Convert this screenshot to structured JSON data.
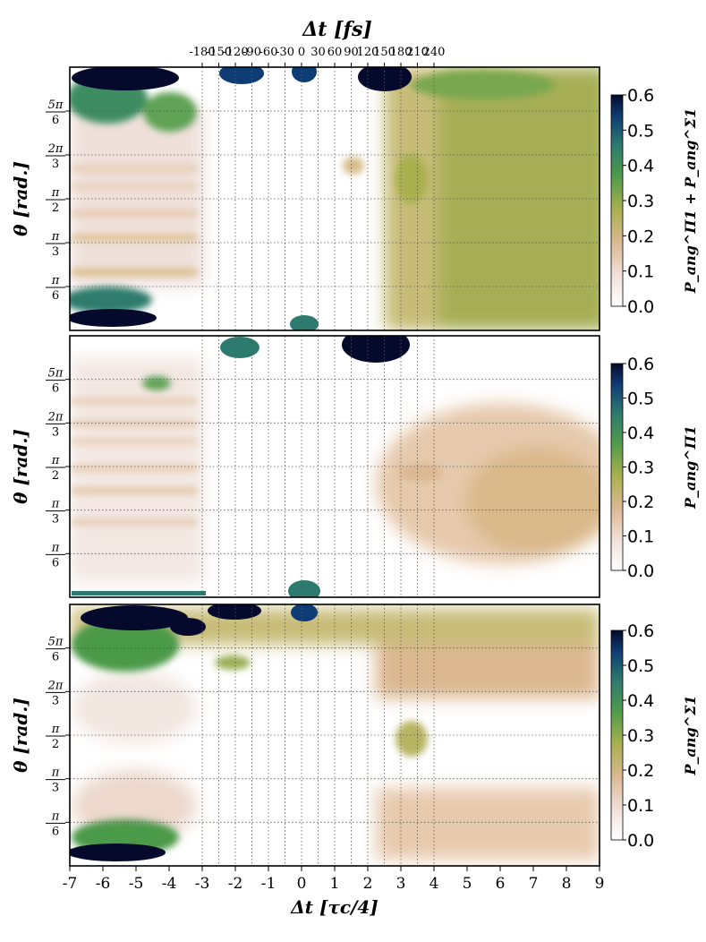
{
  "colors": {
    "colormap": [
      "#ffffff",
      "#f2e2dc",
      "#dcb892",
      "#a8b04e",
      "#4c9a4a",
      "#2d7a6e",
      "#0e3c74",
      "#050a2c"
    ],
    "grid": "#555555"
  },
  "chart_data": {
    "type": "heatmap",
    "top_axis": {
      "label": "Δt [fs]",
      "tick_labels": [
        "-180",
        "-150",
        "-120",
        "-90",
        "-60",
        "-30",
        "0",
        "30",
        "60",
        "90",
        "120",
        "150",
        "180",
        "210",
        "240"
      ]
    },
    "x_axis": {
      "label": "Δt [τc/4]",
      "tick_labels": [
        "-7",
        "-6",
        "-5",
        "-4",
        "-3",
        "-2",
        "-1",
        "0",
        "1",
        "2",
        "3",
        "4",
        "5",
        "6",
        "7",
        "8",
        "9"
      ],
      "range": [
        -7,
        9
      ]
    },
    "y_axis": {
      "label": "θ [rad.]",
      "tick_labels": [
        "π/6",
        "π/3",
        "π/2",
        "2π/3",
        "5π/6"
      ],
      "range_rad": [
        0,
        3.1416
      ]
    },
    "panels": [
      {
        "colorbar_label": "P_ang^Π1 + P_ang^Σ1",
        "colorbar_ticks": [
          "0.0",
          "0.1",
          "0.2",
          "0.3",
          "0.4",
          "0.5",
          "0.6"
        ],
        "value_range": [
          0.0,
          0.6
        ],
        "features": [
          {
            "region": "Δt -7 to -4, θ near 0 and near π",
            "value": 0.6
          },
          {
            "region": "Δt -7 to -4, mid θ fringes",
            "value": 0.15
          },
          {
            "region": "Δt -3 to -1",
            "value": 0.03
          },
          {
            "region": "Δt 0, θ near 0 and π",
            "value": 0.55
          },
          {
            "region": "Δt 2, θ near π",
            "value": 0.6
          },
          {
            "region": "Δt 4 to 9, all θ",
            "value": 0.27
          }
        ]
      },
      {
        "colorbar_label": "P_ang^Π1",
        "colorbar_ticks": [
          "0.0",
          "0.1",
          "0.2",
          "0.3",
          "0.4",
          "0.5",
          "0.6"
        ],
        "value_range": [
          0.0,
          0.6
        ],
        "features": [
          {
            "region": "Δt -7 to -4, striped fringes",
            "value": 0.15
          },
          {
            "region": "Δt -2, θ near π",
            "value": 0.45
          },
          {
            "region": "Δt 0, θ near 0",
            "value": 0.5
          },
          {
            "region": "Δt 2, θ near π",
            "value": 0.6
          },
          {
            "region": "Δt 4 to 9, mid θ",
            "value": 0.18
          }
        ]
      },
      {
        "colorbar_label": "P_ang^Σ1",
        "colorbar_ticks": [
          "0.0",
          "0.1",
          "0.2",
          "0.3",
          "0.4",
          "0.5",
          "0.6"
        ],
        "value_range": [
          0.0,
          0.6
        ],
        "features": [
          {
            "region": "Δt -7 to -4, θ near π",
            "value": 0.6
          },
          {
            "region": "Δt -7 to -4, θ near 0",
            "value": 0.45
          },
          {
            "region": "Δt -2, θ near π",
            "value": 0.6
          },
          {
            "region": "Δt 0, θ near π",
            "value": 0.5
          },
          {
            "region": "Δt 4 to 9, θ near π and 0",
            "value": 0.25
          },
          {
            "region": "Δt 4 to 9, mid θ",
            "value": 0.1
          }
        ]
      }
    ]
  }
}
